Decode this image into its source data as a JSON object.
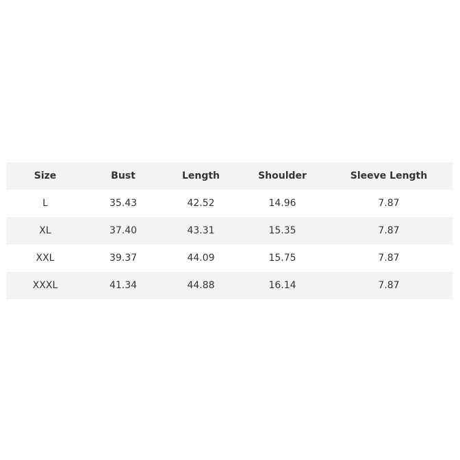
{
  "table": {
    "header": [
      "Size",
      "Bust",
      "Length",
      "Shoulder",
      "Sleeve Length"
    ],
    "rows": [
      [
        "L",
        "35.43",
        "42.52",
        "14.96",
        "7.87"
      ],
      [
        "XL",
        "37.40",
        "43.31",
        "15.35",
        "7.87"
      ],
      [
        "XXL",
        "39.37",
        "44.09",
        "15.75",
        "7.87"
      ],
      [
        "XXXL",
        "41.34",
        "44.88",
        "16.14",
        "7.87"
      ]
    ]
  }
}
